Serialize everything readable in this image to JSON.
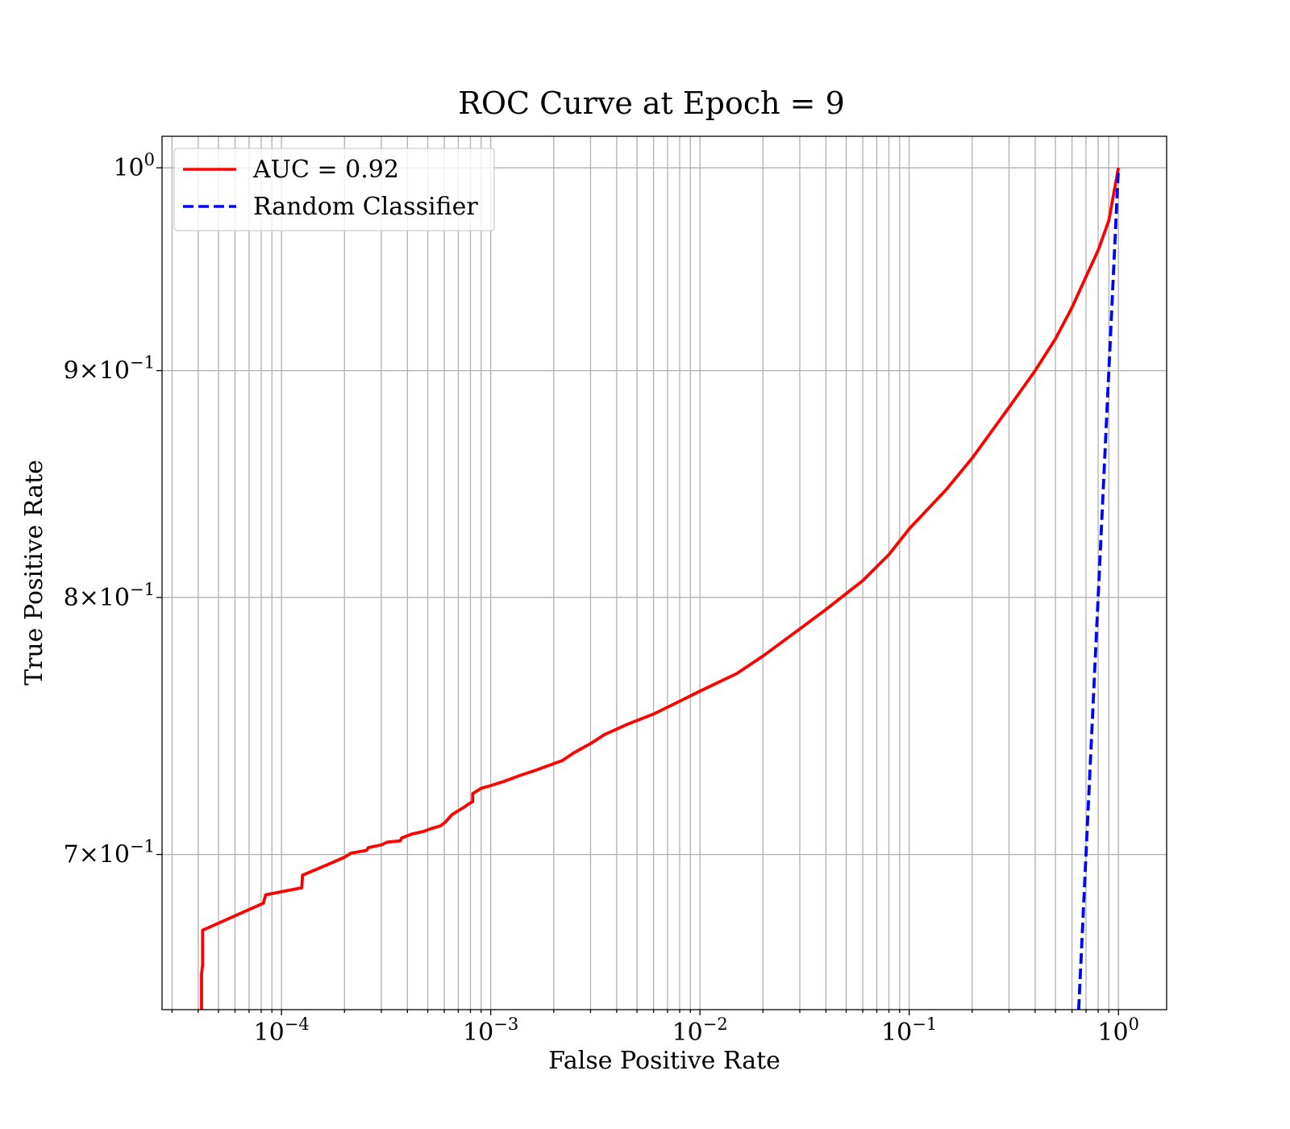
{
  "chart_data": {
    "type": "line",
    "title": "ROC Curve at Epoch = 9",
    "xlabel": "False Positive Rate",
    "ylabel": "True Positive Rate",
    "xscale": "log",
    "yscale": "log",
    "xlim": [
      2.687e-05,
      1.7
    ],
    "ylim": [
      0.6458,
      1.0165
    ],
    "grid": "both major and minor",
    "legend_position": "top-left",
    "x_ticks": [
      {
        "value": 0.0001,
        "base": "10",
        "exp": "−4"
      },
      {
        "value": 0.001,
        "base": "10",
        "exp": "−3"
      },
      {
        "value": 0.01,
        "base": "10",
        "exp": "−2"
      },
      {
        "value": 0.1,
        "base": "10",
        "exp": "−1"
      },
      {
        "value": 1,
        "base": "10",
        "exp": "0"
      }
    ],
    "y_ticks": [
      {
        "value": 1.0,
        "mant": "",
        "base": "10",
        "exp": "0"
      },
      {
        "value": 0.9,
        "mant": "9×",
        "base": "10",
        "exp": "−1"
      },
      {
        "value": 0.8,
        "mant": "8×",
        "base": "10",
        "exp": "−1"
      },
      {
        "value": 0.7,
        "mant": "7×",
        "base": "10",
        "exp": "−1"
      }
    ],
    "series": [
      {
        "name": "AUC = 0.92",
        "color": "#ff0000",
        "dash": "solid",
        "x": [
          4.15e-05,
          4.15e-05,
          4.2e-05,
          4.2e-05,
          8.2e-05,
          8.4e-05,
          0.000125,
          0.000126,
          0.000168,
          0.0002,
          0.000215,
          0.000255,
          0.00026,
          0.0003,
          0.00032,
          0.00037,
          0.000375,
          0.00042,
          0.00045,
          0.00048,
          0.00052,
          0.000575,
          0.00061,
          0.00065,
          0.00068,
          0.00075,
          0.00078,
          0.00082,
          0.00082,
          0.0009,
          0.001,
          0.00115,
          0.0014,
          0.0016,
          0.0018,
          0.0022,
          0.0025,
          0.003,
          0.0035,
          0.0045,
          0.006,
          0.008,
          0.01,
          0.015,
          0.02,
          0.03,
          0.04,
          0.06,
          0.08,
          0.1,
          0.15,
          0.2,
          0.3,
          0.4,
          0.5,
          0.6,
          0.7,
          0.8,
          0.9,
          1.0
        ],
        "y": [
          0.6458,
          0.658,
          0.661,
          0.673,
          0.6825,
          0.6855,
          0.688,
          0.6925,
          0.6965,
          0.699,
          0.7005,
          0.7015,
          0.7025,
          0.7035,
          0.7045,
          0.705,
          0.706,
          0.7075,
          0.708,
          0.7085,
          0.7095,
          0.7105,
          0.712,
          0.7145,
          0.7155,
          0.7175,
          0.7185,
          0.7195,
          0.7225,
          0.7245,
          0.7255,
          0.727,
          0.7295,
          0.731,
          0.7325,
          0.735,
          0.738,
          0.7415,
          0.745,
          0.749,
          0.753,
          0.758,
          0.762,
          0.769,
          0.776,
          0.787,
          0.795,
          0.807,
          0.818,
          0.829,
          0.846,
          0.86,
          0.883,
          0.9,
          0.915,
          0.93,
          0.945,
          0.958,
          0.973,
          1.0
        ]
      },
      {
        "name": "Random Classifier",
        "color": "#0000ff",
        "dash": "dashed",
        "x": [
          0.6458,
          1.0
        ],
        "y": [
          0.6458,
          1.0
        ]
      }
    ]
  }
}
